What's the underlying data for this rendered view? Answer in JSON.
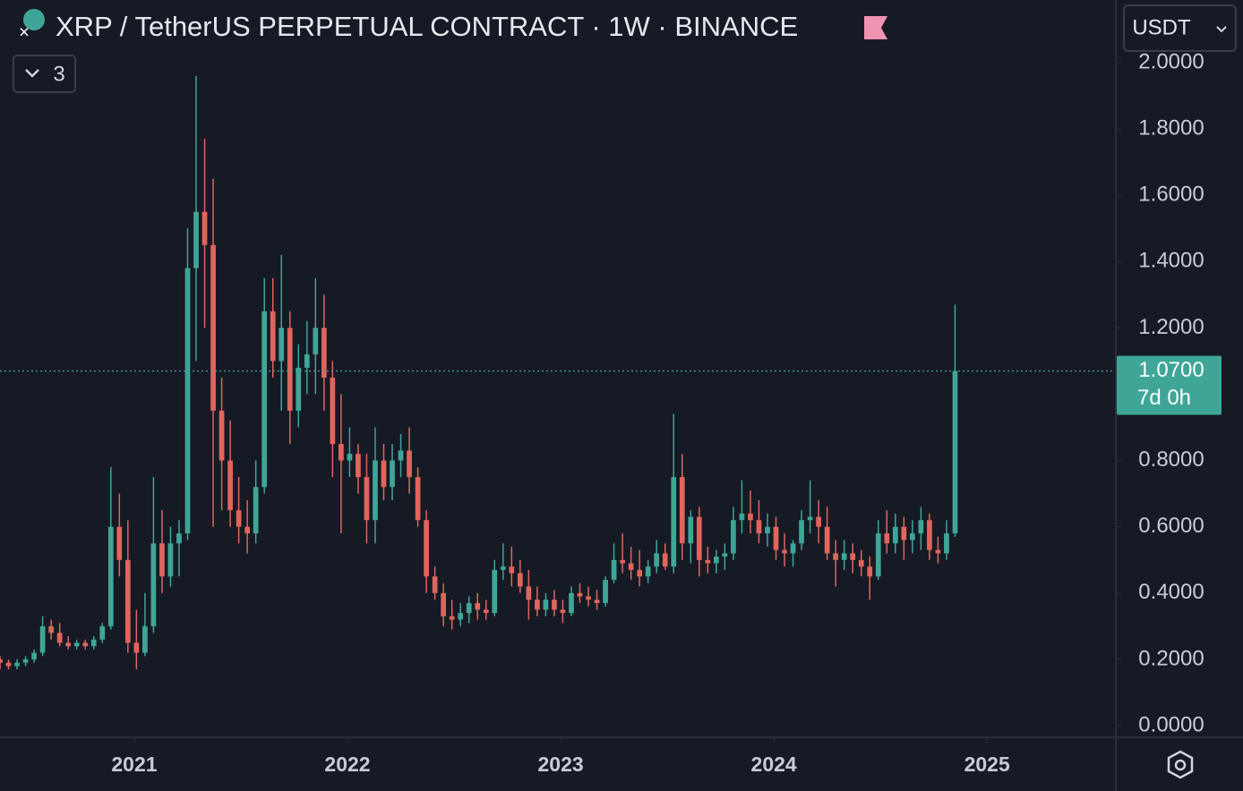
{
  "header": {
    "title": "XRP / TetherUS PERPETUAL CONTRACT · 1W · BINANCE",
    "indicators": "3",
    "currency": "USDT"
  },
  "chart_data": {
    "type": "candlestick",
    "x": [
      2020.37,
      2020.41,
      2020.45,
      2020.49,
      2020.53,
      2020.57,
      2020.61,
      2020.65,
      2020.69,
      2020.73,
      2020.77,
      2020.81,
      2020.85,
      2020.89,
      2020.93,
      2020.97,
      2021.01,
      2021.05,
      2021.09,
      2021.13,
      2021.17,
      2021.21,
      2021.25,
      2021.29,
      2021.33,
      2021.37,
      2021.41,
      2021.45,
      2021.49,
      2021.53,
      2021.57,
      2021.61,
      2021.65,
      2021.69,
      2021.73,
      2021.77,
      2021.81,
      2021.85,
      2021.89,
      2021.93,
      2021.97,
      2022.01,
      2022.05,
      2022.09,
      2022.13,
      2022.17,
      2022.21,
      2022.25,
      2022.29,
      2022.33,
      2022.37,
      2022.41,
      2022.45,
      2022.49,
      2022.53,
      2022.57,
      2022.61,
      2022.65,
      2022.69,
      2022.73,
      2022.77,
      2022.81,
      2022.85,
      2022.89,
      2022.93,
      2022.97,
      2023.01,
      2023.05,
      2023.09,
      2023.13,
      2023.17,
      2023.21,
      2023.25,
      2023.29,
      2023.33,
      2023.37,
      2023.41,
      2023.45,
      2023.49,
      2023.53,
      2023.57,
      2023.61,
      2023.65,
      2023.69,
      2023.73,
      2023.77,
      2023.81,
      2023.85,
      2023.89,
      2023.93,
      2023.97,
      2024.01,
      2024.05,
      2024.09,
      2024.13,
      2024.17,
      2024.21,
      2024.25,
      2024.29,
      2024.33,
      2024.37,
      2024.41,
      2024.45,
      2024.49,
      2024.53,
      2024.57,
      2024.61,
      2024.65,
      2024.69,
      2024.73,
      2024.77,
      2024.81,
      2024.85
    ],
    "open": [
      0.2,
      0.19,
      0.18,
      0.19,
      0.2,
      0.22,
      0.3,
      0.28,
      0.25,
      0.24,
      0.25,
      0.24,
      0.26,
      0.3,
      0.6,
      0.5,
      0.25,
      0.22,
      0.3,
      0.55,
      0.45,
      0.55,
      0.58,
      1.38,
      1.55,
      1.45,
      0.95,
      0.8,
      0.65,
      0.6,
      0.58,
      0.72,
      1.25,
      1.1,
      1.2,
      0.95,
      1.08,
      1.12,
      1.2,
      1.05,
      0.85,
      0.8,
      0.82,
      0.75,
      0.62,
      0.8,
      0.72,
      0.8,
      0.83,
      0.75,
      0.62,
      0.45,
      0.4,
      0.33,
      0.32,
      0.34,
      0.37,
      0.35,
      0.34,
      0.47,
      0.48,
      0.46,
      0.42,
      0.38,
      0.35,
      0.38,
      0.35,
      0.34,
      0.4,
      0.39,
      0.38,
      0.37,
      0.44,
      0.5,
      0.49,
      0.47,
      0.45,
      0.48,
      0.52,
      0.48,
      0.75,
      0.55,
      0.63,
      0.5,
      0.49,
      0.51,
      0.52,
      0.62,
      0.64,
      0.62,
      0.58,
      0.6,
      0.53,
      0.52,
      0.55,
      0.62,
      0.63,
      0.6,
      0.52,
      0.5,
      0.52,
      0.5,
      0.48,
      0.45,
      0.58,
      0.55,
      0.6,
      0.56,
      0.58,
      0.62,
      0.53,
      0.52,
      0.58
    ],
    "high": [
      0.21,
      0.2,
      0.2,
      0.21,
      0.23,
      0.33,
      0.32,
      0.31,
      0.27,
      0.26,
      0.26,
      0.27,
      0.31,
      0.78,
      0.7,
      0.62,
      0.35,
      0.4,
      0.75,
      0.65,
      0.6,
      0.62,
      1.5,
      1.96,
      1.77,
      1.65,
      1.05,
      0.92,
      0.75,
      0.68,
      0.8,
      1.35,
      1.35,
      1.42,
      1.25,
      1.15,
      1.22,
      1.35,
      1.3,
      1.1,
      1.0,
      0.9,
      0.85,
      0.82,
      0.9,
      0.85,
      0.85,
      0.88,
      0.9,
      0.78,
      0.65,
      0.48,
      0.43,
      0.38,
      0.37,
      0.39,
      0.4,
      0.38,
      0.5,
      0.55,
      0.54,
      0.5,
      0.47,
      0.42,
      0.4,
      0.41,
      0.38,
      0.42,
      0.43,
      0.42,
      0.41,
      0.45,
      0.55,
      0.58,
      0.54,
      0.53,
      0.5,
      0.56,
      0.55,
      0.94,
      0.82,
      0.65,
      0.66,
      0.54,
      0.53,
      0.55,
      0.66,
      0.74,
      0.71,
      0.68,
      0.64,
      0.63,
      0.58,
      0.56,
      0.65,
      0.74,
      0.68,
      0.66,
      0.56,
      0.56,
      0.55,
      0.53,
      0.51,
      0.62,
      0.65,
      0.64,
      0.63,
      0.62,
      0.66,
      0.64,
      0.57,
      0.62,
      1.27
    ],
    "low": [
      0.17,
      0.17,
      0.17,
      0.18,
      0.19,
      0.21,
      0.26,
      0.24,
      0.23,
      0.23,
      0.23,
      0.23,
      0.25,
      0.29,
      0.45,
      0.22,
      0.17,
      0.21,
      0.28,
      0.4,
      0.42,
      0.45,
      0.56,
      1.1,
      1.2,
      0.6,
      0.65,
      0.6,
      0.55,
      0.52,
      0.55,
      0.7,
      1.05,
      0.95,
      0.85,
      0.9,
      1.0,
      1.0,
      0.95,
      0.75,
      0.58,
      0.75,
      0.7,
      0.55,
      0.55,
      0.68,
      0.68,
      0.75,
      0.7,
      0.6,
      0.4,
      0.38,
      0.3,
      0.29,
      0.3,
      0.31,
      0.32,
      0.32,
      0.33,
      0.44,
      0.42,
      0.4,
      0.32,
      0.33,
      0.33,
      0.33,
      0.31,
      0.33,
      0.37,
      0.36,
      0.35,
      0.36,
      0.43,
      0.46,
      0.44,
      0.42,
      0.43,
      0.46,
      0.47,
      0.46,
      0.5,
      0.49,
      0.45,
      0.46,
      0.46,
      0.47,
      0.5,
      0.58,
      0.58,
      0.55,
      0.54,
      0.5,
      0.48,
      0.48,
      0.53,
      0.58,
      0.55,
      0.5,
      0.42,
      0.47,
      0.46,
      0.45,
      0.38,
      0.44,
      0.52,
      0.52,
      0.5,
      0.52,
      0.53,
      0.5,
      0.49,
      0.5,
      0.57
    ],
    "close": [
      0.19,
      0.18,
      0.19,
      0.2,
      0.22,
      0.3,
      0.28,
      0.25,
      0.24,
      0.25,
      0.24,
      0.26,
      0.3,
      0.6,
      0.5,
      0.25,
      0.22,
      0.3,
      0.55,
      0.45,
      0.55,
      0.58,
      1.38,
      1.55,
      1.45,
      0.95,
      0.8,
      0.65,
      0.6,
      0.58,
      0.72,
      1.25,
      1.1,
      1.2,
      0.95,
      1.08,
      1.12,
      1.2,
      1.05,
      0.85,
      0.8,
      0.82,
      0.75,
      0.62,
      0.8,
      0.72,
      0.8,
      0.83,
      0.75,
      0.62,
      0.45,
      0.4,
      0.33,
      0.32,
      0.34,
      0.37,
      0.35,
      0.34,
      0.47,
      0.48,
      0.46,
      0.42,
      0.38,
      0.35,
      0.38,
      0.35,
      0.34,
      0.4,
      0.39,
      0.38,
      0.37,
      0.44,
      0.5,
      0.49,
      0.47,
      0.45,
      0.48,
      0.52,
      0.48,
      0.75,
      0.55,
      0.63,
      0.5,
      0.49,
      0.51,
      0.52,
      0.62,
      0.64,
      0.62,
      0.58,
      0.6,
      0.53,
      0.52,
      0.55,
      0.62,
      0.63,
      0.6,
      0.52,
      0.5,
      0.52,
      0.5,
      0.48,
      0.45,
      0.58,
      0.55,
      0.6,
      0.56,
      0.58,
      0.62,
      0.53,
      0.52,
      0.58,
      1.07
    ],
    "up_color": "#3fa697",
    "down_color": "#e0655c",
    "xlim": [
      2020.37,
      2025.6
    ],
    "xticks": [
      2021,
      2022,
      2023,
      2024,
      2025
    ],
    "ylim": [
      -0.035,
      2.189
    ],
    "yticks": [
      {
        "value": 0,
        "label": "0.0000"
      },
      {
        "value": 0.2,
        "label": "0.2000"
      },
      {
        "value": 0.4,
        "label": "0.4000"
      },
      {
        "value": 0.6,
        "label": "0.6000"
      },
      {
        "value": 0.8,
        "label": "0.8000"
      },
      {
        "value": 1.2,
        "label": "1.2000"
      },
      {
        "value": 1.4,
        "label": "1.4000"
      },
      {
        "value": 1.6,
        "label": "1.6000"
      },
      {
        "value": 1.8,
        "label": "1.8000"
      },
      {
        "value": 2,
        "label": "2.0000"
      }
    ],
    "last_price": {
      "value": 1.07,
      "label": "1.0700"
    },
    "countdown": "7d 0h"
  }
}
